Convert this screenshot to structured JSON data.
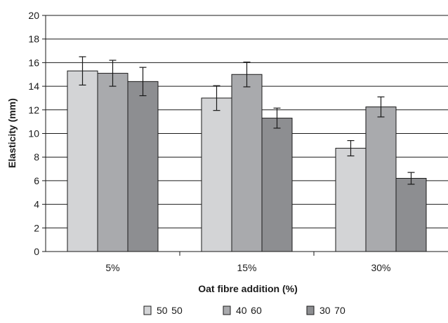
{
  "chart_data": {
    "type": "bar",
    "categories": [
      "5%",
      "15%",
      "30%"
    ],
    "series": [
      {
        "name": "50 50",
        "values": [
          15.3,
          13.0,
          8.75
        ],
        "errors": [
          1.2,
          1.05,
          0.65
        ],
        "color": "#d3d4d6"
      },
      {
        "name": "40 60",
        "values": [
          15.1,
          15.0,
          12.25
        ],
        "errors": [
          1.1,
          1.05,
          0.85
        ],
        "color": "#a9aaad"
      },
      {
        "name": "30 70",
        "values": [
          14.4,
          11.3,
          6.2
        ],
        "errors": [
          1.2,
          0.85,
          0.5
        ],
        "color": "#8d8e91"
      }
    ],
    "xlabel": "Oat fibre addition (%)",
    "ylabel": "Elasticity (mm)",
    "ylim": [
      0,
      20
    ],
    "yticks": [
      "0",
      "2",
      "4",
      "6",
      "8",
      "10",
      "12",
      "14",
      "16",
      "18",
      "20"
    ],
    "grid": true,
    "legend_position": "bottom"
  }
}
